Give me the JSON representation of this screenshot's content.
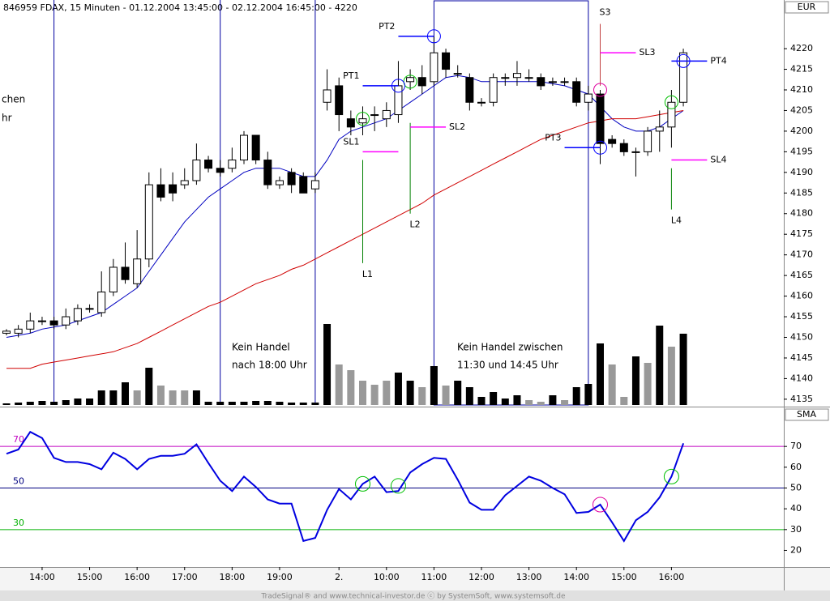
{
  "chart_data": [
    {
      "type": "candlestick",
      "title": "846959  FDAX, 15 Minuten - 01.12.2004 13:45:00 - 02.12.2004 16:45:00 - 4220",
      "unit": "EUR",
      "footer": "TradeSignal® and www.technical-investor.de ⓒ by SystemSoft, www.systemsoft.de",
      "notes": [
        "Kein Handel",
        "nach 18:00 Uhr",
        "Kein Handel zwischen",
        "11:30 und 14:45 Uhr",
        "chen",
        "hr"
      ],
      "open": [
        4151,
        4151,
        4152,
        4154,
        4154,
        4153,
        4154,
        4157,
        4156,
        4161,
        4167,
        4163,
        4169,
        4187,
        4187,
        4187,
        4188,
        4193,
        4191,
        4191,
        4193,
        4199,
        4193,
        4187,
        4190,
        4189,
        4186,
        4207,
        4211,
        4203,
        4202,
        4204,
        4203,
        4204,
        4212,
        4213,
        4212,
        4219,
        4214,
        4213,
        4207,
        4207,
        4213,
        4213,
        4213,
        4213,
        4212,
        4212,
        4212,
        4207,
        4209,
        4198,
        4197,
        4195,
        4195,
        4200,
        4201,
        4207
      ],
      "high": [
        4152,
        4153,
        4156,
        4155,
        4155,
        4157,
        4158,
        4158,
        4166,
        4169,
        4173,
        4176,
        4190,
        4191,
        4190,
        4191,
        4197,
        4194,
        4193,
        4196,
        4200,
        4199,
        4195,
        4189,
        4191,
        4190,
        4190,
        4215,
        4213,
        4205,
        4206,
        4206,
        4207,
        4217,
        4215,
        4216,
        4223,
        4220,
        4216,
        4214,
        4208,
        4214,
        4214,
        4217,
        4215,
        4214,
        4213,
        4213,
        4213,
        4211,
        4210,
        4199,
        4198,
        4196,
        4201,
        4205,
        4210,
        4220
      ],
      "low": [
        4150.5,
        4150,
        4151,
        4153,
        4152,
        4152,
        4153,
        4156,
        4155,
        4160,
        4163,
        4162,
        4167,
        4183,
        4183,
        4186,
        4187,
        4190,
        4189,
        4190,
        4192,
        4192,
        4186,
        4186,
        4185,
        4185,
        4185,
        4205,
        4200,
        4199,
        4199,
        4200,
        4201,
        4202,
        4210,
        4209,
        4211,
        4213,
        4213,
        4205,
        4206,
        4206,
        4211,
        4211,
        4212,
        4210,
        4211,
        4211,
        4206,
        4205,
        4192,
        4196,
        4194,
        4189,
        4194,
        4195,
        4196,
        4206
      ],
      "close": [
        4151.5,
        4152,
        4154,
        4154,
        4153,
        4155,
        4157,
        4157,
        4161,
        4167,
        4164,
        4169,
        4187,
        4184,
        4185,
        4188,
        4193,
        4191,
        4190,
        4193,
        4199,
        4193,
        4187,
        4188,
        4187,
        4185,
        4188,
        4210,
        4204,
        4201,
        4203,
        4204,
        4205,
        4211,
        4213,
        4211,
        4219,
        4215,
        4214,
        4207,
        4207,
        4213,
        4213,
        4214,
        4213,
        4211,
        4212,
        4212,
        4207,
        4209,
        4197,
        4197,
        4195,
        4195,
        4200,
        4201,
        4207,
        4219
      ],
      "ma": [
        {
          "color": "#0000c0",
          "values": [
            4150,
            4150.5,
            4151,
            4152,
            4152.5,
            4153,
            4154,
            4155,
            4156,
            4158,
            4160,
            4162,
            4166,
            4170,
            4174,
            4178,
            4181,
            4184,
            4186,
            4188,
            4190,
            4191,
            4191,
            4191,
            4190,
            4189,
            4189,
            4193,
            4198,
            4200,
            4201,
            4202,
            4203,
            4205,
            4207,
            4209,
            4211,
            4213,
            4213.5,
            4213,
            4212,
            4212,
            4212,
            4212,
            4212,
            4212,
            4211.5,
            4211,
            4210,
            4209,
            4206,
            4203,
            4201,
            4200,
            4200,
            4201,
            4203,
            4205
          ]
        },
        {
          "color": "#d00000",
          "values": [
            4142.5,
            4142.5,
            4142.5,
            4143.5,
            4144,
            4144.5,
            4145,
            4145.5,
            4146,
            4146.5,
            4147.5,
            4148.5,
            4150,
            4151.5,
            4153,
            4154.5,
            4156,
            4157.5,
            4158.5,
            4160,
            4161.5,
            4163,
            4164,
            4165,
            4166.5,
            4167.5,
            4169,
            4170.5,
            4172,
            4173.5,
            4175,
            4176.5,
            4178,
            4179.5,
            4181,
            4182.5,
            4184.5,
            4186,
            4187.5,
            4189,
            4190.5,
            4192,
            4193.5,
            4195,
            4196.5,
            4198,
            4199,
            4200,
            4201,
            4202,
            4202.5,
            4203,
            4203,
            4203,
            4203.5,
            4204,
            4204.5,
            4205
          ]
        }
      ],
      "volume": {
        "lim": [
          0,
          100
        ],
        "values": [
          2,
          3,
          4,
          5,
          4,
          6,
          8,
          8,
          18,
          18,
          28,
          18,
          46,
          24,
          18,
          18,
          18,
          4,
          4,
          4,
          4,
          5,
          5,
          4,
          3,
          3,
          3,
          100,
          50,
          43,
          30,
          25,
          30,
          40,
          30,
          22,
          48,
          24,
          30,
          22,
          10,
          16,
          8,
          12,
          6,
          4,
          12,
          6,
          22,
          26,
          76,
          50,
          10,
          60,
          52,
          98,
          72,
          88
        ],
        "colors": [
          "#000000",
          "#000000",
          "#000000",
          "#000000",
          "#000000",
          "#000000",
          "#000000",
          "#000000",
          "#000000",
          "#000000",
          "#000000",
          "#999999",
          "#000000",
          "#999999",
          "#999999",
          "#999999",
          "#000000",
          "#000000",
          "#000000",
          "#000000",
          "#000000",
          "#000000",
          "#000000",
          "#000000",
          "#000000",
          "#000000",
          "#000000",
          "#000000",
          "#999999",
          "#999999",
          "#999999",
          "#999999",
          "#999999",
          "#000000",
          "#000000",
          "#999999",
          "#000000",
          "#999999",
          "#000000",
          "#000000",
          "#000000",
          "#000000",
          "#000000",
          "#000000",
          "#999999",
          "#999999",
          "#000000",
          "#999999",
          "#000000",
          "#000000",
          "#000000",
          "#999999",
          "#999999",
          "#000000",
          "#999999",
          "#000000",
          "#999999",
          "#000000"
        ]
      },
      "ylim": [
        4133.6,
        4231.8
      ],
      "yticks": [
        4135,
        4140,
        4145,
        4150,
        4155,
        4160,
        4165,
        4170,
        4175,
        4180,
        4185,
        4190,
        4195,
        4200,
        4205,
        4210,
        4215,
        4220
      ],
      "xticks": [
        {
          "value": 3,
          "label": "14:00"
        },
        {
          "value": 7,
          "label": "15:00"
        },
        {
          "value": 11,
          "label": "16:00"
        },
        {
          "value": 15,
          "label": "17:00"
        },
        {
          "value": 19,
          "label": "18:00"
        },
        {
          "value": 23,
          "label": "19:00"
        },
        {
          "value": 28,
          "label": "2."
        },
        {
          "value": 32,
          "label": "10:00"
        },
        {
          "value": 36,
          "label": "11:00"
        },
        {
          "value": 40,
          "label": "12:00"
        },
        {
          "value": 44,
          "label": "13:00"
        },
        {
          "value": 48,
          "label": "14:00"
        },
        {
          "value": 52,
          "label": "15:00"
        },
        {
          "value": 56,
          "label": "16:00"
        }
      ],
      "separators": [
        4,
        18,
        26
      ],
      "no_trade_zone": [
        36,
        49
      ],
      "signals": [
        {
          "label": "L1",
          "index": 30,
          "from": 4193,
          "to": 4168,
          "color": "#008000"
        },
        {
          "label": "L2",
          "index": 34,
          "from": 4202,
          "to": 4180,
          "color": "#008000"
        },
        {
          "label": "S3",
          "index": 50,
          "from": 4211,
          "to": 4226,
          "color": "#c04040"
        },
        {
          "label": "L4",
          "index": 56,
          "from": 4191,
          "to": 4181,
          "color": "#008000"
        }
      ],
      "levels": [
        {
          "label": "SL1",
          "value": 4195,
          "from": 30,
          "to": 33,
          "color": "#ff00ff",
          "label_side": "left"
        },
        {
          "label": "PT1",
          "value": 4211,
          "from": 30,
          "to": 33,
          "color": "#0000ff",
          "label_side": "left"
        },
        {
          "label": "SL2",
          "value": 4201,
          "from": 34,
          "to": 37,
          "color": "#ff00ff",
          "label_side": "right"
        },
        {
          "label": "PT2",
          "value": 4223,
          "from": 33,
          "to": 36,
          "color": "#0000ff",
          "label_side": "left"
        },
        {
          "label": "SL3",
          "value": 4219,
          "from": 50,
          "to": 53,
          "color": "#ff00ff",
          "label_side": "right"
        },
        {
          "label": "PT3",
          "value": 4196,
          "from": 47,
          "to": 50,
          "color": "#0000ff",
          "label_side": "left"
        },
        {
          "label": "SL4",
          "value": 4193,
          "from": 56,
          "to": 59,
          "color": "#ff00ff",
          "label_side": "right"
        },
        {
          "label": "PT4",
          "value": 4217,
          "from": 56,
          "to": 59,
          "color": "#0000ff",
          "label_side": "right"
        }
      ],
      "circles": [
        {
          "index": 30,
          "value": 4203,
          "color": "#00c000"
        },
        {
          "index": 34,
          "value": 4212,
          "color": "#00c000"
        },
        {
          "index": 56,
          "value": 4207,
          "color": "#00c000"
        },
        {
          "index": 50,
          "value": 4210,
          "color": "#e000a0"
        },
        {
          "index": 33,
          "value": 4211,
          "color": "#0000ff"
        },
        {
          "index": 36,
          "value": 4223,
          "color": "#0000ff"
        },
        {
          "index": 50,
          "value": 4196,
          "color": "#0000ff"
        },
        {
          "index": 57,
          "value": 4217,
          "color": "#0000ff"
        }
      ]
    },
    {
      "type": "line",
      "unit": "SMA",
      "color": "#0000e0",
      "values": [
        66.5,
        68.5,
        77,
        74,
        64.5,
        62.5,
        62.5,
        61.5,
        59,
        67,
        64,
        59,
        64,
        65.5,
        65.5,
        66.5,
        71,
        62,
        53.5,
        48.5,
        55.5,
        50.5,
        44.5,
        42.5,
        42.5,
        24.5,
        26,
        39.5,
        49.5,
        44.5,
        52,
        55.5,
        48,
        48.5,
        57.5,
        61.5,
        64.5,
        64,
        54,
        43,
        39.5,
        39.5,
        46.5,
        51,
        55.5,
        53.5,
        50,
        47,
        38,
        38.5,
        42,
        33.5,
        24.5,
        34.5,
        38.5,
        45.5,
        55.5,
        71.5
      ],
      "ylim": [
        12,
        88
      ],
      "yticks": [
        20,
        30,
        40,
        50,
        60,
        70
      ],
      "levels": [
        {
          "value": 70,
          "color": "#c000c0"
        },
        {
          "value": 50,
          "color": "#000080"
        },
        {
          "value": 30,
          "color": "#00b000"
        }
      ],
      "circles": [
        {
          "index": 30,
          "value": 52,
          "color": "#00c000"
        },
        {
          "index": 33,
          "value": 51,
          "color": "#00c000"
        },
        {
          "index": 50,
          "value": 42,
          "color": "#e000a0"
        },
        {
          "index": 56,
          "value": 55.5,
          "color": "#00c000"
        }
      ]
    }
  ]
}
